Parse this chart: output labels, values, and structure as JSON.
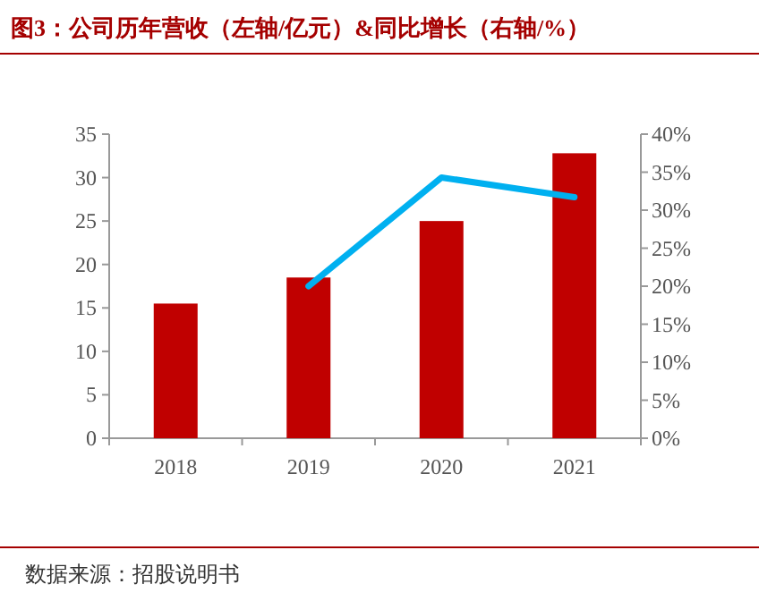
{
  "chart_data": {
    "type": "bar",
    "title": "图3：公司历年营收（左轴/亿元）&同比增长（右轴/%）",
    "categories": [
      "2018",
      "2019",
      "2020",
      "2021"
    ],
    "series": [
      {
        "color": "#c00000",
        "values": [
          15.5,
          18.5,
          25.0,
          32.8
        ]
      },
      {
        "type": "line",
        "axis": "y2",
        "color": "#00b0f0",
        "values": [
          null,
          20.0,
          34.3,
          31.7
        ]
      }
    ],
    "ylim": [
      0,
      35
    ],
    "yticks": [
      0,
      5,
      10,
      15,
      20,
      25,
      30,
      35
    ],
    "y2lim": [
      0,
      40
    ],
    "y2ticks": [
      {
        "value": 0,
        "label": "0%"
      },
      {
        "value": 5,
        "label": "5%"
      },
      {
        "value": 10,
        "label": "10%"
      },
      {
        "value": 15,
        "label": "15%"
      },
      {
        "value": 20,
        "label": "20%"
      },
      {
        "value": 25,
        "label": "25%"
      },
      {
        "value": 30,
        "label": "30%"
      },
      {
        "value": 35,
        "label": "35%"
      },
      {
        "value": 40,
        "label": "40%"
      }
    ],
    "grid": false,
    "annotations": [
      "数据来源：招股说明书"
    ]
  }
}
